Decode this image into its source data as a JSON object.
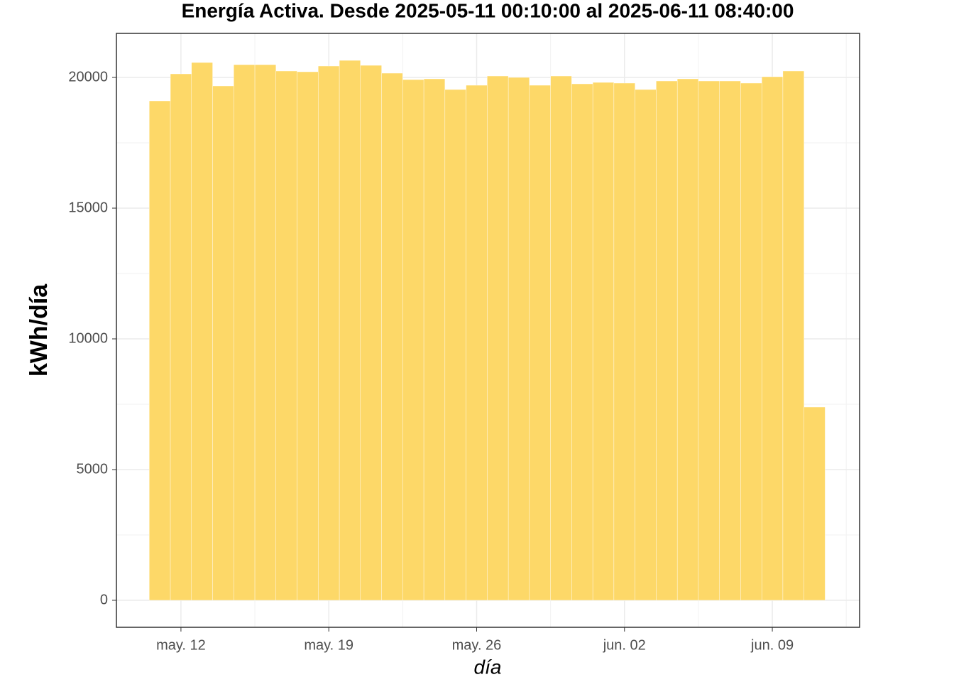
{
  "chart_data": {
    "type": "bar",
    "title": "Energía Activa. Desde  2025-05-11 00:10:00  al  2025-06-11 08:40:00",
    "x_label": "día",
    "y_label": "kWh/día",
    "x": [
      "2025-05-11",
      "2025-05-12",
      "2025-05-13",
      "2025-05-14",
      "2025-05-15",
      "2025-05-16",
      "2025-05-17",
      "2025-05-18",
      "2025-05-19",
      "2025-05-20",
      "2025-05-21",
      "2025-05-22",
      "2025-05-23",
      "2025-05-24",
      "2025-05-25",
      "2025-05-26",
      "2025-05-27",
      "2025-05-28",
      "2025-05-29",
      "2025-05-30",
      "2025-05-31",
      "2025-06-01",
      "2025-06-02",
      "2025-06-03",
      "2025-06-04",
      "2025-06-05",
      "2025-06-06",
      "2025-06-07",
      "2025-06-08",
      "2025-06-09",
      "2025-06-10",
      "2025-06-11"
    ],
    "values": [
      19103,
      20136,
      20571,
      19674,
      20489,
      20489,
      20245,
      20217,
      20435,
      20652,
      20462,
      20163,
      19918,
      19946,
      19538,
      19701,
      20054,
      20000,
      19701,
      20054,
      19755,
      19810,
      19783,
      19538,
      19864,
      19946,
      19864,
      19864,
      19783,
      20027,
      20245,
      7391
    ],
    "color": "#fdd868",
    "xlim": [
      "2025-05-08T22:40:00Z",
      "2025-06-13T03:10:00Z"
    ],
    "xticks": [
      {
        "value": "2025-05-12",
        "label": "may. 12"
      },
      {
        "value": "2025-05-19",
        "label": "may. 19"
      },
      {
        "value": "2025-05-26",
        "label": "may. 26"
      },
      {
        "value": "2025-06-02",
        "label": "jun. 02"
      },
      {
        "value": "2025-06-09",
        "label": "jun. 09"
      }
    ],
    "ylim": [
      -1033,
      21685
    ],
    "yticks": [
      0,
      5000,
      10000,
      15000,
      20000
    ],
    "grid": true
  }
}
